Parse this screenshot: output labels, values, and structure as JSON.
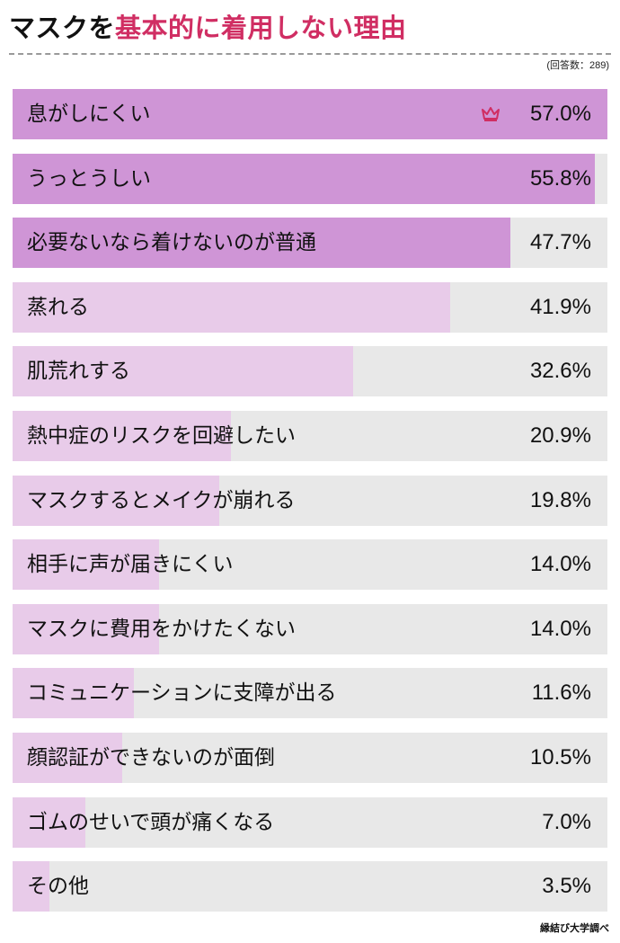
{
  "header": {
    "title_prefix": "マスクを",
    "title_highlight": "基本的に着用しない理由",
    "title_highlight_color": "#d02e63",
    "respondents_note": "(回答数：289)"
  },
  "colors": {
    "top_fill": "#cf95d6",
    "other_fill": "#e8cbe9",
    "track": "#e8e8e8",
    "crown": "#d02e63"
  },
  "chart_data": {
    "type": "bar",
    "orientation": "horizontal",
    "title": "マスクを基本的に着用しない理由",
    "xlim": [
      0,
      57.0
    ],
    "unit": "%",
    "top_highlighted": 3,
    "crown_on_first": true,
    "categories": [
      "息がしにくい",
      "うっとうしい",
      "必要ないなら着けないのが普通",
      "蒸れる",
      "肌荒れする",
      "熱中症のリスクを回避したい",
      "マスクするとメイクが崩れる",
      "相手に声が届きにくい",
      "マスクに費用をかけたくない",
      "コミュニケーションに支障が出る",
      "顔認証ができないのが面倒",
      "ゴムのせいで頭が痛くなる",
      "その他"
    ],
    "values": [
      57.0,
      55.8,
      47.7,
      41.9,
      32.6,
      20.9,
      19.8,
      14.0,
      14.0,
      11.6,
      10.5,
      7.0,
      3.5
    ],
    "value_labels": [
      "57.0%",
      "55.8%",
      "47.7%",
      "41.9%",
      "32.6%",
      "20.9%",
      "19.8%",
      "14.0%",
      "14.0%",
      "11.6%",
      "10.5%",
      "7.0%",
      "3.5%"
    ]
  },
  "footer": {
    "source": "縁結び大学調べ"
  }
}
